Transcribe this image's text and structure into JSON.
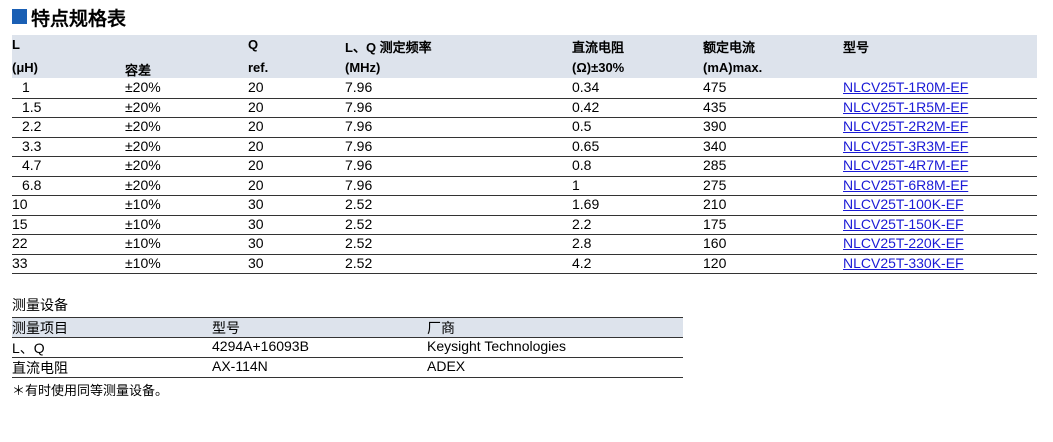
{
  "title": "特点规格表",
  "spec_table": {
    "header": [
      {
        "line1": "L",
        "line2": "(μH)"
      },
      {
        "line2": "容差"
      },
      {
        "line1": "Q",
        "line2": "ref."
      },
      {
        "line1": "L、Q 测定频率",
        "line2": "(MHz)"
      },
      {
        "line1": "直流电阻",
        "line2": "(Ω)±30%"
      },
      {
        "line1": "额定电流",
        "line2": "(mA)max."
      },
      {
        "line1": "型号"
      }
    ],
    "rows": [
      [
        "1",
        "±20%",
        "20",
        "7.96",
        "0.34",
        "475",
        "NLCV25T-1R0M-EF"
      ],
      [
        "1.5",
        "±20%",
        "20",
        "7.96",
        "0.42",
        "435",
        "NLCV25T-1R5M-EF"
      ],
      [
        "2.2",
        "±20%",
        "20",
        "7.96",
        "0.5",
        "390",
        "NLCV25T-2R2M-EF"
      ],
      [
        "3.3",
        "±20%",
        "20",
        "7.96",
        "0.65",
        "340",
        "NLCV25T-3R3M-EF"
      ],
      [
        "4.7",
        "±20%",
        "20",
        "7.96",
        "0.8",
        "285",
        "NLCV25T-4R7M-EF"
      ],
      [
        "6.8",
        "±20%",
        "20",
        "7.96",
        "1",
        "275",
        "NLCV25T-6R8M-EF"
      ],
      [
        "10",
        "±10%",
        "30",
        "2.52",
        "1.69",
        "210",
        "NLCV25T-100K-EF"
      ],
      [
        "15",
        "±10%",
        "30",
        "2.52",
        "2.2",
        "175",
        "NLCV25T-150K-EF"
      ],
      [
        "22",
        "±10%",
        "30",
        "2.52",
        "2.8",
        "160",
        "NLCV25T-220K-EF"
      ],
      [
        "33",
        "±10%",
        "30",
        "2.52",
        "4.2",
        "120",
        "NLCV25T-330K-EF"
      ]
    ]
  },
  "equipment": {
    "title": "测量设备",
    "header": [
      "测量项目",
      "型号",
      "厂商"
    ],
    "rows": [
      [
        "L、Q",
        "4294A+16093B",
        "Keysight Technologies"
      ],
      [
        "直流电阻",
        "AX-114N",
        "ADEX"
      ]
    ],
    "note": "＊有时使用同等测量设备。"
  }
}
